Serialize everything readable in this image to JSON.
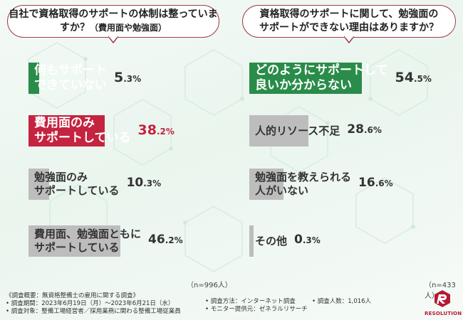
{
  "chart_data": [
    {
      "type": "bar",
      "orientation": "horizontal",
      "title": "自社で資格取得のサポートの体制は整っていますか？",
      "title_sub": "（費用面や勉強面）",
      "categories": [
        "何もサポート\nできていない",
        "費用面のみ\nサポートしている",
        "勉強面のみ\nサポートしている",
        "費用面、勉強面ともに\nサポートしている"
      ],
      "values": [
        5.3,
        38.2,
        10.3,
        46.2
      ],
      "value_labels": [
        [
          "5",
          ".3%"
        ],
        [
          "38",
          ".2%"
        ],
        [
          "10",
          ".3%"
        ],
        [
          "46",
          ".2%"
        ]
      ],
      "note": "（n=996人）",
      "colors": [
        "#2a8c4a",
        "#c4243f",
        "#bdbdbd",
        "#bdbdbd"
      ],
      "xlim": [
        0,
        100
      ]
    },
    {
      "type": "bar",
      "orientation": "horizontal",
      "title": "資格取得のサポートに関して、勉強面の\nサポートができない理由はありますか？",
      "categories": [
        "どのようにサポートして\n良いか分からない",
        "人的リソース不足",
        "勉強面を教えられる\n人がいない",
        "その他"
      ],
      "values": [
        54.5,
        28.6,
        16.6,
        0.3
      ],
      "value_labels": [
        [
          "54",
          ".5%"
        ],
        [
          "28",
          ".6%"
        ],
        [
          "16",
          ".6%"
        ],
        [
          "0",
          ".3%"
        ]
      ],
      "note": "（n=433人）",
      "colors": [
        "#2a8c4a",
        "#bdbdbd",
        "#bdbdbd",
        "#bdbdbd"
      ],
      "xlim": [
        0,
        100
      ]
    }
  ],
  "footer": {
    "title": "《調査概要：無資格整備士の雇用に関する調査》",
    "period": "• 調査期間：2023年6月19日（月）〜2023年6月21日（水）",
    "target": "• 調査対象：整備工場経営者／採用業務に関わる整備工場従業員",
    "method": "• 調査方法：インターネット調査",
    "provider": "• モニター提供元：ゼネラルリサーチ",
    "count": "• 調査人数：1,016人"
  },
  "logo": {
    "text": "RESOLUTION",
    "color": "#b31b34"
  }
}
